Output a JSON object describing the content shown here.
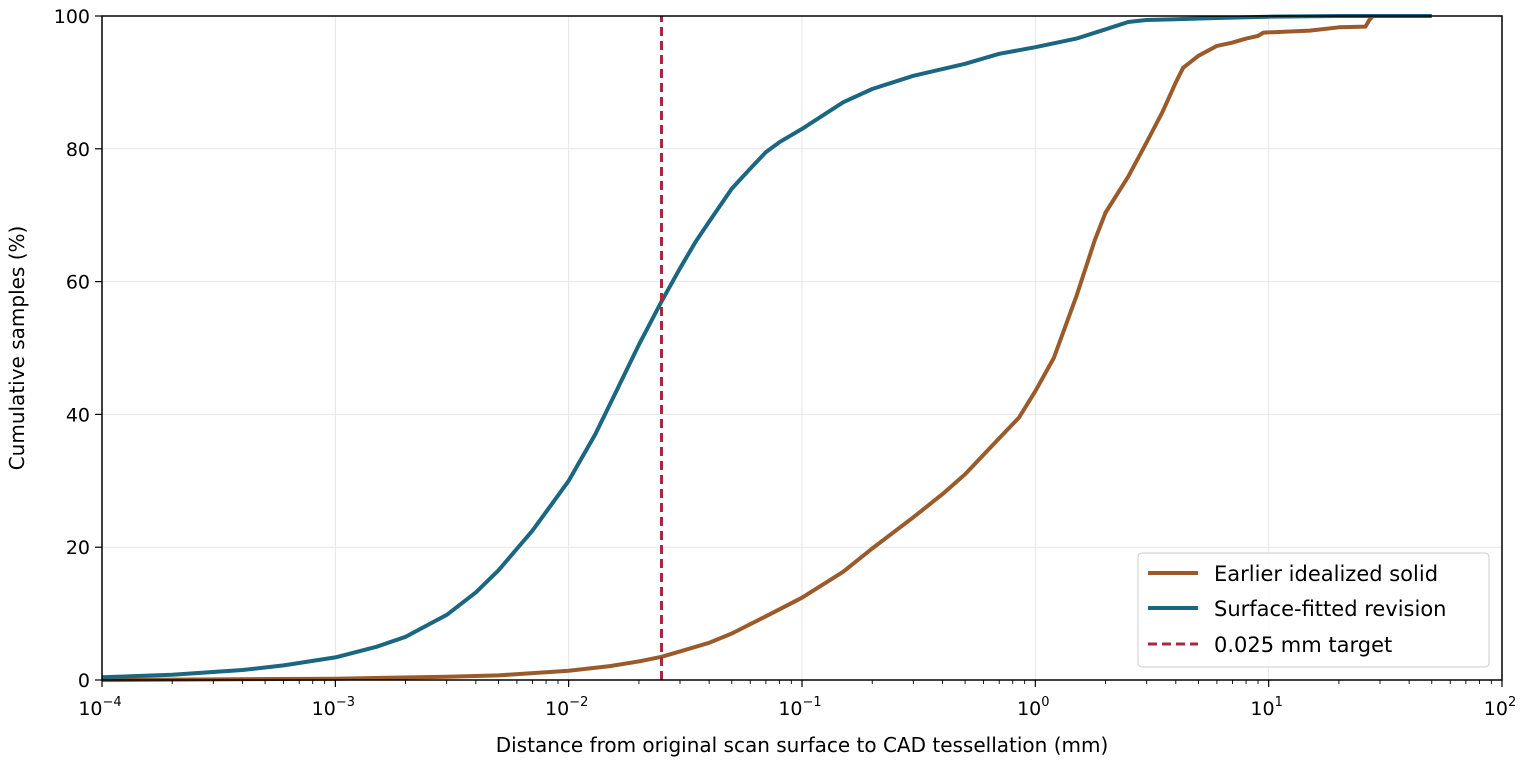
{
  "chart_data": {
    "type": "line",
    "title": "",
    "xlabel": "Distance from original scan surface to CAD tessellation (mm)",
    "ylabel": "Cumulative samples (%)",
    "xscale": "log",
    "xlim": [
      0.0001,
      100
    ],
    "ylim": [
      0,
      100
    ],
    "grid": true,
    "legend": {
      "position": "bottom-right"
    },
    "x_ticks": [
      {
        "value": 0.0001,
        "base": "10",
        "exp": "−4"
      },
      {
        "value": 0.001,
        "base": "10",
        "exp": "−3"
      },
      {
        "value": 0.01,
        "base": "10",
        "exp": "−2"
      },
      {
        "value": 0.1,
        "base": "10",
        "exp": "−1"
      },
      {
        "value": 1,
        "base": "10",
        "exp": "0"
      },
      {
        "value": 10,
        "base": "10",
        "exp": "1"
      },
      {
        "value": 100,
        "base": "10",
        "exp": "2"
      }
    ],
    "y_ticks": [
      {
        "value": 0,
        "label": "0"
      },
      {
        "value": 20,
        "label": "20"
      },
      {
        "value": 40,
        "label": "40"
      },
      {
        "value": 60,
        "label": "60"
      },
      {
        "value": 80,
        "label": "80"
      },
      {
        "value": 100,
        "label": "100"
      }
    ],
    "series": [
      {
        "name": "Earlier idealized solid",
        "color": "#9a5a2a",
        "style": "solid",
        "points": [
          [
            0.0001,
            0.0
          ],
          [
            0.001,
            0.2
          ],
          [
            0.003,
            0.5
          ],
          [
            0.005,
            0.7
          ],
          [
            0.01,
            1.4
          ],
          [
            0.015,
            2.1
          ],
          [
            0.02,
            2.8
          ],
          [
            0.025,
            3.5
          ],
          [
            0.03,
            4.3
          ],
          [
            0.04,
            5.6
          ],
          [
            0.05,
            7.0
          ],
          [
            0.07,
            9.6
          ],
          [
            0.1,
            12.4
          ],
          [
            0.15,
            16.3
          ],
          [
            0.2,
            19.8
          ],
          [
            0.3,
            24.5
          ],
          [
            0.4,
            28.0
          ],
          [
            0.5,
            31.0
          ],
          [
            0.7,
            36.4
          ],
          [
            0.85,
            39.5
          ],
          [
            1.0,
            43.5
          ],
          [
            1.2,
            48.5
          ],
          [
            1.5,
            57.8
          ],
          [
            1.8,
            66.3
          ],
          [
            2.0,
            70.4
          ],
          [
            2.5,
            75.8
          ],
          [
            3.0,
            81.0
          ],
          [
            3.5,
            85.5
          ],
          [
            4.0,
            90.0
          ],
          [
            4.3,
            92.2
          ],
          [
            5.0,
            94.0
          ],
          [
            6.0,
            95.5
          ],
          [
            7.0,
            96.0
          ],
          [
            8.0,
            96.6
          ],
          [
            9.0,
            97.0
          ],
          [
            9.5,
            97.5
          ],
          [
            15,
            97.8
          ],
          [
            20,
            98.3
          ],
          [
            26,
            98.4
          ],
          [
            27,
            99.4
          ],
          [
            28,
            100.0
          ],
          [
            30,
            100.0
          ]
        ]
      },
      {
        "name": "Surface-fitted revision",
        "color": "#1b6680",
        "style": "solid",
        "points": [
          [
            0.0001,
            0.4
          ],
          [
            0.0002,
            0.8
          ],
          [
            0.0004,
            1.5
          ],
          [
            0.0006,
            2.2
          ],
          [
            0.001,
            3.4
          ],
          [
            0.0015,
            5.0
          ],
          [
            0.002,
            6.5
          ],
          [
            0.003,
            9.8
          ],
          [
            0.004,
            13.2
          ],
          [
            0.005,
            16.5
          ],
          [
            0.007,
            22.5
          ],
          [
            0.01,
            30.0
          ],
          [
            0.013,
            37.0
          ],
          [
            0.016,
            43.5
          ],
          [
            0.02,
            50.5
          ],
          [
            0.025,
            57.0
          ],
          [
            0.03,
            62.0
          ],
          [
            0.035,
            66.0
          ],
          [
            0.04,
            69.0
          ],
          [
            0.05,
            74.0
          ],
          [
            0.06,
            77.0
          ],
          [
            0.07,
            79.5
          ],
          [
            0.08,
            81.0
          ],
          [
            0.1,
            83.0
          ],
          [
            0.15,
            87.0
          ],
          [
            0.2,
            89.0
          ],
          [
            0.3,
            91.0
          ],
          [
            0.5,
            92.8
          ],
          [
            0.7,
            94.3
          ],
          [
            1.0,
            95.3
          ],
          [
            1.5,
            96.6
          ],
          [
            2.0,
            98.0
          ],
          [
            2.5,
            99.1
          ],
          [
            3.0,
            99.4
          ],
          [
            4.0,
            99.5
          ],
          [
            6.0,
            99.7
          ],
          [
            10,
            99.9
          ],
          [
            20,
            100.0
          ],
          [
            50,
            100.0
          ]
        ]
      },
      {
        "name": "0.025 mm target",
        "color": "#a8283f",
        "style": "dashed",
        "points": [
          [
            0.025,
            0
          ],
          [
            0.025,
            100
          ]
        ]
      }
    ]
  }
}
